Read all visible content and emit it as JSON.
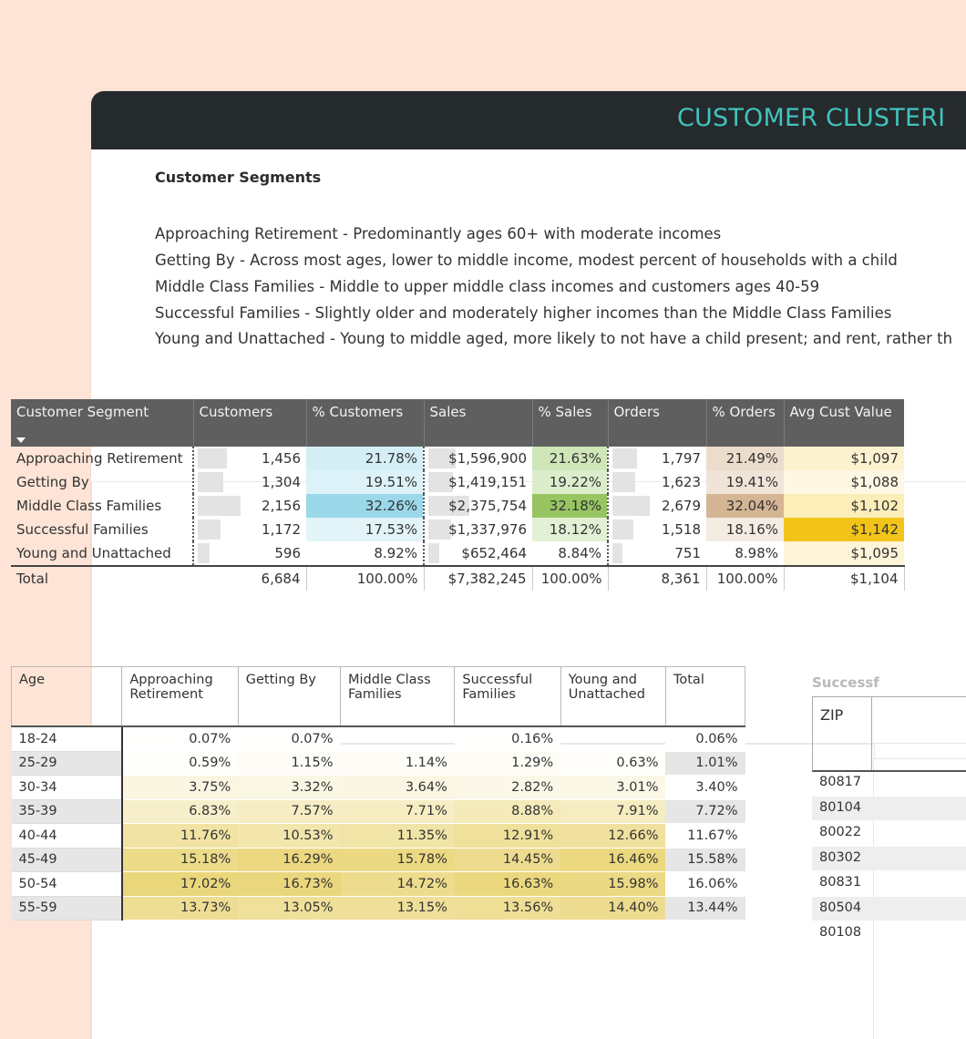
{
  "header": {
    "title": "CUSTOMER CLUSTERI"
  },
  "segments": {
    "heading": "Customer Segments",
    "descriptions": [
      "Approaching Retirement - Predominantly ages 60+ with moderate incomes",
      "Getting By - Across most ages, lower to middle income, modest percent of households with a child",
      "Middle Class Families - Middle to upper middle class incomes and customers ages 40-59",
      "Successful Families - Slightly older and moderately higher incomes than the Middle Class Families",
      "Young and Unattached - Young to middle aged, more likely to not have a child present; and rent, rather th"
    ]
  },
  "segment_table": {
    "headers": [
      "Customer Segment",
      "Customers",
      "% Customers",
      "Sales",
      "% Sales",
      "Orders",
      "% Orders",
      "Avg Cust Value"
    ],
    "rows": [
      {
        "segment": "Approaching Retirement",
        "customers": "1,456",
        "pct_customers": "21.78%",
        "sales": "$1,596,900",
        "pct_sales": "21.63%",
        "orders": "1,797",
        "pct_orders": "21.49%",
        "avg": "$1,097"
      },
      {
        "segment": "Getting By",
        "customers": "1,304",
        "pct_customers": "19.51%",
        "sales": "$1,419,151",
        "pct_sales": "19.22%",
        "orders": "1,623",
        "pct_orders": "19.41%",
        "avg": "$1,088"
      },
      {
        "segment": "Middle Class Families",
        "customers": "2,156",
        "pct_customers": "32.26%",
        "sales": "$2,375,754",
        "pct_sales": "32.18%",
        "orders": "2,679",
        "pct_orders": "32.04%",
        "avg": "$1,102"
      },
      {
        "segment": "Successful Families",
        "customers": "1,172",
        "pct_customers": "17.53%",
        "sales": "$1,337,976",
        "pct_sales": "18.12%",
        "orders": "1,518",
        "pct_orders": "18.16%",
        "avg": "$1,142"
      },
      {
        "segment": "Young and Unattached",
        "customers": "596",
        "pct_customers": "8.92%",
        "sales": "$652,464",
        "pct_sales": "8.84%",
        "orders": "751",
        "pct_orders": "8.98%",
        "avg": "$1,095"
      }
    ],
    "total": {
      "segment": "Total",
      "customers": "6,684",
      "pct_customers": "100.00%",
      "sales": "$7,382,245",
      "pct_sales": "100.00%",
      "orders": "8,361",
      "pct_orders": "100.00%",
      "avg": "$1,104"
    },
    "bar_fractions": {
      "customers": [
        0.675,
        0.605,
        1.0,
        0.544,
        0.276
      ],
      "sales": [
        0.672,
        0.597,
        1.0,
        0.563,
        0.275
      ],
      "orders": [
        0.671,
        0.606,
        1.0,
        0.567,
        0.28
      ]
    },
    "colors": {
      "pct_customers": [
        "#d4eef6",
        "#ddf2f8",
        "#9ad8ea",
        "#e3f4f9",
        "#ffffff"
      ],
      "pct_sales": [
        "#cfe6b9",
        "#dcedcc",
        "#97c561",
        "#e2f0d5",
        "#ffffff"
      ],
      "pct_orders": [
        "#ecdccc",
        "#f0e4d8",
        "#d4b594",
        "#f4ebe2",
        "#ffffff"
      ],
      "avg": [
        "#fdf2cf",
        "#fef7e3",
        "#fceeb8",
        "#f2c41a",
        "#fef4d7"
      ]
    }
  },
  "age_table": {
    "headers": [
      "Age",
      "Approaching Retirement",
      "Getting By",
      "Middle Class Families",
      "Successful Families",
      "Young and Unattached",
      "Total"
    ],
    "rows": [
      {
        "age": "18-24",
        "values": [
          "0.07%",
          "0.07%",
          "",
          "0.16%",
          "",
          "0.06%"
        ]
      },
      {
        "age": "25-29",
        "values": [
          "0.59%",
          "1.15%",
          "1.14%",
          "1.29%",
          "0.63%",
          "1.01%"
        ]
      },
      {
        "age": "30-34",
        "values": [
          "3.75%",
          "3.32%",
          "3.64%",
          "2.82%",
          "3.01%",
          "3.40%"
        ]
      },
      {
        "age": "35-39",
        "values": [
          "6.83%",
          "7.57%",
          "7.71%",
          "8.88%",
          "7.91%",
          "7.72%"
        ]
      },
      {
        "age": "40-44",
        "values": [
          "11.76%",
          "10.53%",
          "11.35%",
          "12.91%",
          "12.66%",
          "11.67%"
        ]
      },
      {
        "age": "45-49",
        "values": [
          "15.18%",
          "16.29%",
          "15.78%",
          "14.45%",
          "16.46%",
          "15.58%"
        ]
      },
      {
        "age": "50-54",
        "values": [
          "17.02%",
          "16.73%",
          "14.72%",
          "16.63%",
          "15.98%",
          "16.06%"
        ]
      },
      {
        "age": "55-59",
        "values": [
          "13.73%",
          "13.05%",
          "13.15%",
          "13.56%",
          "14.40%",
          "13.44%"
        ]
      }
    ],
    "heat_colors": {
      "low": "#ffffff",
      "high": "#ead67a"
    }
  },
  "zip_table": {
    "title": "Successf",
    "column": "ZIP",
    "rows": [
      "80817",
      "80104",
      "80022",
      "80302",
      "80831",
      "80504",
      "80108"
    ]
  }
}
